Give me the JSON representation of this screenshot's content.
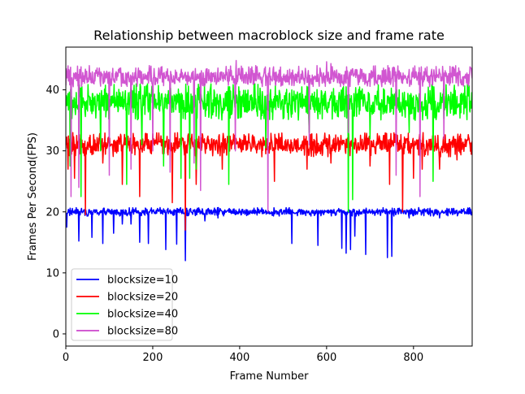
{
  "chart_data": {
    "type": "line",
    "title": "Relationship between macroblock size and frame rate",
    "xlabel": "Frame Number",
    "ylabel": "Frames Per Second(FPS)",
    "xlim": [
      0,
      935
    ],
    "ylim": [
      -2,
      47
    ],
    "xticks": [
      0,
      200,
      400,
      600,
      800
    ],
    "yticks": [
      0,
      10,
      20,
      30,
      40
    ],
    "grid": false,
    "legend_position": "lower-left",
    "series": [
      {
        "name": "blocksize=10",
        "color": "#0000ff",
        "base": 20,
        "band": [
          19.3,
          20.7
        ],
        "dips": [
          [
            2,
            17.5
          ],
          [
            30,
            15.2
          ],
          [
            60,
            15.8
          ],
          [
            85,
            14.8
          ],
          [
            110,
            16.5
          ],
          [
            130,
            18.0
          ],
          [
            150,
            18.0
          ],
          [
            170,
            15.0
          ],
          [
            190,
            14.8
          ],
          [
            230,
            13.8
          ],
          [
            255,
            14.7
          ],
          [
            275,
            12.0
          ],
          [
            320,
            18.5
          ],
          [
            350,
            19.0
          ],
          [
            520,
            14.8
          ],
          [
            580,
            14.5
          ],
          [
            635,
            14.0
          ],
          [
            645,
            13.2
          ],
          [
            655,
            13.8
          ],
          [
            665,
            16.0
          ],
          [
            690,
            13.0
          ],
          [
            740,
            12.5
          ],
          [
            750,
            12.7
          ],
          [
            790,
            19.0
          ],
          [
            860,
            19.0
          ]
        ]
      },
      {
        "name": "blocksize=20",
        "color": "#ff0000",
        "base": 31,
        "band": [
          29,
          33
        ],
        "dips": [
          [
            5,
            27.0
          ],
          [
            20,
            25.5
          ],
          [
            45,
            19.5
          ],
          [
            85,
            28.0
          ],
          [
            130,
            24.5
          ],
          [
            170,
            22.5
          ],
          [
            245,
            21.5
          ],
          [
            275,
            17.0
          ],
          [
            300,
            24.5
          ],
          [
            360,
            27.0
          ],
          [
            480,
            25.0
          ],
          [
            555,
            27.0
          ],
          [
            610,
            28.0
          ],
          [
            700,
            27.5
          ],
          [
            745,
            24.5
          ],
          [
            775,
            20.0
          ],
          [
            800,
            25.5
          ],
          [
            820,
            27.0
          ],
          [
            860,
            27.0
          ],
          [
            900,
            28.5
          ]
        ]
      },
      {
        "name": "blocksize=40",
        "color": "#00ff00",
        "base": 38,
        "band": [
          35,
          41
        ],
        "dips": [
          [
            10,
            27.5
          ],
          [
            35,
            22.5
          ],
          [
            80,
            30.0
          ],
          [
            140,
            24.5
          ],
          [
            175,
            31.0
          ],
          [
            225,
            27.5
          ],
          [
            265,
            25.5
          ],
          [
            285,
            25.5
          ],
          [
            300,
            27.0
          ],
          [
            375,
            24.5
          ],
          [
            460,
            30.5
          ],
          [
            560,
            33.0
          ],
          [
            650,
            20.0
          ],
          [
            660,
            22.0
          ],
          [
            700,
            32.0
          ],
          [
            790,
            33.0
          ],
          [
            845,
            25.0
          ]
        ]
      },
      {
        "name": "blocksize=80",
        "color": "#cc44cc",
        "base": 42,
        "band": [
          40.5,
          44
        ],
        "dips": [
          [
            12,
            22.5
          ],
          [
            30,
            24.0
          ],
          [
            100,
            26.0
          ],
          [
            150,
            27.0
          ],
          [
            200,
            30.0
          ],
          [
            240,
            26.5
          ],
          [
            295,
            28.0
          ],
          [
            310,
            23.5
          ],
          [
            390,
            30.0
          ],
          [
            465,
            20.0
          ],
          [
            560,
            31.0
          ],
          [
            650,
            33.0
          ],
          [
            760,
            26.0
          ],
          [
            815,
            22.5
          ],
          [
            870,
            32.0
          ]
        ],
        "peaks": [
          [
            392,
            44.8
          ],
          [
            600,
            44.6
          ],
          [
            610,
            44.3
          ]
        ]
      }
    ]
  }
}
